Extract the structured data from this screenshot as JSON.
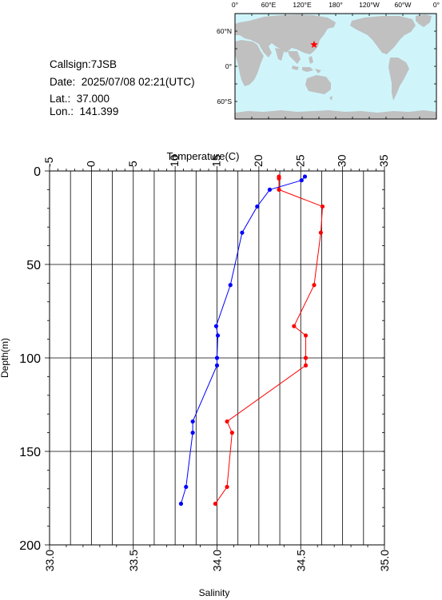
{
  "info": {
    "callsign": "Callsign:7JSB",
    "date": "Date:  2025/07/08 02:21(UTC)",
    "lat": "Lat.:  37.000",
    "lon": "Lon.:  141.399"
  },
  "map": {
    "top_labels": [
      "0°",
      "60°E",
      "120°E",
      "180°",
      "120°W",
      "60°W",
      "0°"
    ],
    "left_labels": [
      "60°N",
      "0°",
      "60°S"
    ],
    "ocean_color": "#cff5fb",
    "land_color": "#c0c0c0",
    "marker": {
      "lat": 37.0,
      "lon": 141.399,
      "color": "#ff0000",
      "icon": "star-icon"
    }
  },
  "chart_data": {
    "type": "line",
    "top_axis_label": "Temperature(C)",
    "bottom_axis_label": "Salinity",
    "y_axis_label": "Depth(m)",
    "temperature_ticks": [
      "-5",
      "0",
      "5",
      "10",
      "15",
      "20",
      "25",
      "30",
      "35"
    ],
    "salinity_ticks": [
      "33.0",
      "33.5",
      "34.0",
      "34.5",
      "35.0"
    ],
    "depth_ticks": [
      "0",
      "50",
      "100",
      "150",
      "200"
    ],
    "temperature_range": [
      -5,
      35
    ],
    "salinity_range": [
      33.0,
      35.0
    ],
    "depth_range": [
      0,
      200
    ],
    "y_inverted": true,
    "grid": true,
    "series": [
      {
        "axis": "temperature",
        "color": "#0000ff",
        "points": [
          {
            "depth": 3,
            "value": 25.5
          },
          {
            "depth": 5,
            "value": 25.1
          },
          {
            "depth": 10,
            "value": 21.3
          },
          {
            "depth": 19,
            "value": 19.8
          },
          {
            "depth": 33,
            "value": 18.0
          },
          {
            "depth": 61,
            "value": 16.6
          },
          {
            "depth": 83,
            "value": 14.9
          },
          {
            "depth": 88,
            "value": 15.1
          },
          {
            "depth": 100,
            "value": 15.0
          },
          {
            "depth": 104,
            "value": 15.0
          },
          {
            "depth": 134,
            "value": 12.1
          },
          {
            "depth": 140,
            "value": 12.1
          },
          {
            "depth": 169,
            "value": 11.3
          },
          {
            "depth": 178,
            "value": 10.7
          }
        ]
      },
      {
        "axis": "salinity",
        "color": "#ff0000",
        "points": [
          {
            "depth": 3,
            "value": 34.37
          },
          {
            "depth": 4,
            "value": 34.37
          },
          {
            "depth": 10,
            "value": 34.37
          },
          {
            "depth": 19,
            "value": 34.63
          },
          {
            "depth": 33,
            "value": 34.62
          },
          {
            "depth": 61,
            "value": 34.58
          },
          {
            "depth": 83,
            "value": 34.46
          },
          {
            "depth": 88,
            "value": 34.53
          },
          {
            "depth": 100,
            "value": 34.53
          },
          {
            "depth": 104,
            "value": 34.53
          },
          {
            "depth": 134,
            "value": 34.06
          },
          {
            "depth": 140,
            "value": 34.09
          },
          {
            "depth": 169,
            "value": 34.06
          },
          {
            "depth": 178,
            "value": 33.99
          }
        ]
      }
    ]
  }
}
